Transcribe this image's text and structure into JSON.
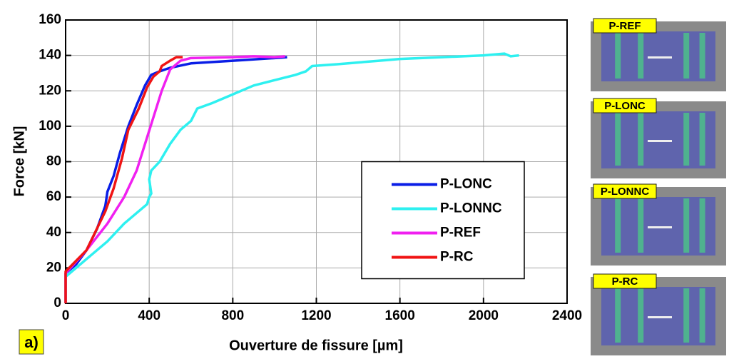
{
  "chart_data": {
    "type": "line",
    "xlabel": "Ouverture de fissure [µm]",
    "ylabel": "Force [kN]",
    "xlim": [
      0,
      2400
    ],
    "ylim": [
      0,
      160
    ],
    "xticks": [
      0,
      400,
      800,
      1200,
      1600,
      2000,
      2400
    ],
    "yticks": [
      0,
      20,
      40,
      60,
      80,
      100,
      120,
      140,
      160
    ],
    "grid": true,
    "legend": "center-right",
    "series": [
      {
        "name": "P-LONC",
        "color": "#0a1ee6",
        "x": [
          0,
          0,
          50,
          100,
          150,
          190,
          200,
          230,
          260,
          300,
          340,
          380,
          410,
          450,
          500,
          600,
          800,
          1000,
          1060
        ],
        "values": [
          0,
          17,
          22,
          30,
          42,
          55,
          63,
          72,
          85,
          100,
          112,
          123,
          129,
          131,
          133,
          135.5,
          137,
          138.5,
          139
        ]
      },
      {
        "name": "P-LONNC",
        "color": "#2ef0f0",
        "x": [
          0,
          0,
          50,
          100,
          200,
          280,
          350,
          390,
          400,
          410,
          400,
          410,
          450,
          500,
          550,
          600,
          630,
          700,
          800,
          900,
          1000,
          1100,
          1150,
          1180,
          1300,
          1500,
          1600,
          1800,
          2000,
          2100,
          2130,
          2170
        ],
        "values": [
          0,
          15,
          20,
          25,
          35,
          45,
          52,
          56,
          60,
          62,
          70,
          75,
          80,
          90,
          98,
          103,
          110,
          113,
          118,
          123,
          126,
          129,
          131,
          134,
          135,
          137,
          138,
          139,
          140,
          141,
          139.5,
          140
        ]
      },
      {
        "name": "P-REF",
        "color": "#f020f0",
        "x": [
          0,
          0,
          100,
          200,
          280,
          340,
          380,
          420,
          460,
          500,
          550,
          600,
          800,
          900,
          1000,
          1050
        ],
        "values": [
          0,
          17,
          30,
          45,
          60,
          75,
          90,
          105,
          120,
          132,
          137,
          138.5,
          139,
          139.5,
          139,
          139.5
        ]
      },
      {
        "name": "P-RC",
        "color": "#f01414",
        "x": [
          0,
          0,
          100,
          190,
          230,
          270,
          300,
          350,
          390,
          420,
          450,
          460,
          500,
          530,
          560
        ],
        "values": [
          0,
          18,
          30,
          52,
          65,
          82,
          98,
          110,
          122,
          128,
          131,
          134,
          137,
          139,
          139
        ]
      }
    ]
  },
  "panel_label": "a)",
  "images": [
    "P-REF",
    "P-LONC",
    "P-LONNC",
    "P-RC"
  ]
}
